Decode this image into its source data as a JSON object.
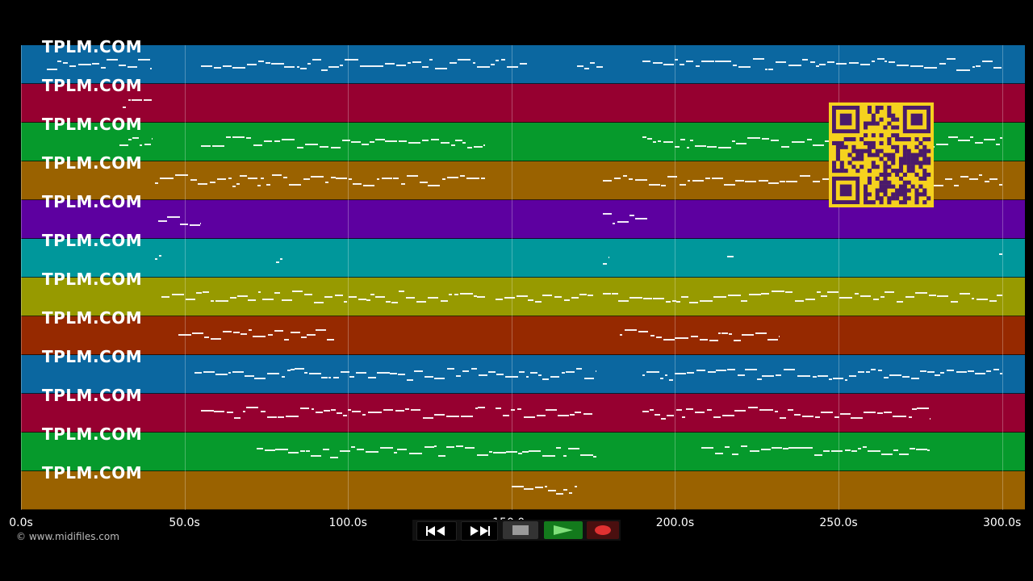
{
  "tracks": [
    {
      "label": "TPLM.COM",
      "color": "#0b67a0"
    },
    {
      "label": "TPLM.COM",
      "color": "#960030"
    },
    {
      "label": "TPLM.COM",
      "color": "#069a2c"
    },
    {
      "label": "TPLM.COM",
      "color": "#9a6200"
    },
    {
      "label": "TPLM.COM",
      "color": "#5d00a0"
    },
    {
      "label": "TPLM.COM",
      "color": "#00979b"
    },
    {
      "label": "TPLM.COM",
      "color": "#979a00"
    },
    {
      "label": "TPLM.COM",
      "color": "#962900"
    },
    {
      "label": "TPLM.COM",
      "color": "#0b67a0"
    },
    {
      "label": "TPLM.COM",
      "color": "#960030"
    },
    {
      "label": "TPLM.COM",
      "color": "#069a2c"
    },
    {
      "label": "TPLM.COM",
      "color": "#9a6200"
    }
  ],
  "time_axis": {
    "ticks": [
      "0.0s",
      "50.0s",
      "100.0s",
      "150.0s",
      "200.0s",
      "250.0s",
      "300.0s"
    ],
    "tick_values": [
      0,
      50,
      100,
      150,
      200,
      250,
      300
    ],
    "max": 307
  },
  "transport": {
    "rewind_icon": "rewind-icon",
    "fast_forward_icon": "fast-forward-icon",
    "stop_icon": "stop-icon",
    "play_icon": "play-icon",
    "record_icon": "record-icon"
  },
  "footer": {
    "copyright": "© www.midifiles.com"
  },
  "qr_icon": "qr-code-icon"
}
